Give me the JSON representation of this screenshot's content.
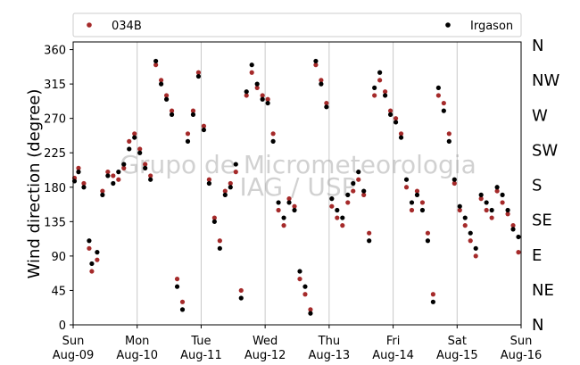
{
  "chart_data": {
    "type": "scatter",
    "title": "",
    "xlabel": "",
    "ylabel": "Wind direction (degree)",
    "ylim": [
      0,
      370
    ],
    "yticks": [
      0,
      45,
      90,
      135,
      180,
      225,
      270,
      315,
      360
    ],
    "xlim": [
      "2015-08-09",
      "2015-08-16"
    ],
    "xticks": [
      {
        "top": "Sun",
        "bottom": "Aug-09"
      },
      {
        "top": "Mon",
        "bottom": "Aug-10"
      },
      {
        "top": "Tue",
        "bottom": "Aug-11"
      },
      {
        "top": "Wed",
        "bottom": "Aug-12"
      },
      {
        "top": "Thu",
        "bottom": "Aug-13"
      },
      {
        "top": "Fri",
        "bottom": "Aug-14"
      },
      {
        "top": "Sat",
        "bottom": "Aug-15"
      },
      {
        "top": "Sun",
        "bottom": "Aug-16"
      }
    ],
    "direction_labels": [
      "N",
      "NE",
      "E",
      "SE",
      "S",
      "SW",
      "W",
      "NW",
      "N"
    ],
    "grid": "vertical",
    "legend_position": "top",
    "watermark": [
      "Grupo de Micrometeorologia",
      "IAG / USP"
    ],
    "series": [
      {
        "name": "034B",
        "color": "#a52a2a",
        "points": [
          [
            "2015-08-09T00:30",
            192
          ],
          [
            "2015-08-09T02:00",
            205
          ],
          [
            "2015-08-09T04:00",
            185
          ],
          [
            "2015-08-09T06:00",
            100
          ],
          [
            "2015-08-09T07:00",
            70
          ],
          [
            "2015-08-09T09:00",
            85
          ],
          [
            "2015-08-09T11:00",
            175
          ],
          [
            "2015-08-09T13:00",
            200
          ],
          [
            "2015-08-09T15:00",
            195
          ],
          [
            "2015-08-09T17:00",
            190
          ],
          [
            "2015-08-09T19:00",
            205
          ],
          [
            "2015-08-09T21:00",
            240
          ],
          [
            "2015-08-09T23:00",
            250
          ],
          [
            "2015-08-10T01:00",
            230
          ],
          [
            "2015-08-10T03:00",
            210
          ],
          [
            "2015-08-10T05:00",
            195
          ],
          [
            "2015-08-10T07:00",
            340
          ],
          [
            "2015-08-10T09:00",
            320
          ],
          [
            "2015-08-10T11:00",
            300
          ],
          [
            "2015-08-10T13:00",
            280
          ],
          [
            "2015-08-10T15:00",
            60
          ],
          [
            "2015-08-10T17:00",
            30
          ],
          [
            "2015-08-10T19:00",
            250
          ],
          [
            "2015-08-10T21:00",
            280
          ],
          [
            "2015-08-10T23:00",
            330
          ],
          [
            "2015-08-11T01:00",
            260
          ],
          [
            "2015-08-11T03:00",
            190
          ],
          [
            "2015-08-11T05:00",
            140
          ],
          [
            "2015-08-11T07:00",
            110
          ],
          [
            "2015-08-11T09:00",
            175
          ],
          [
            "2015-08-11T11:00",
            185
          ],
          [
            "2015-08-11T13:00",
            200
          ],
          [
            "2015-08-11T15:00",
            45
          ],
          [
            "2015-08-11T17:00",
            300
          ],
          [
            "2015-08-11T19:00",
            330
          ],
          [
            "2015-08-11T21:00",
            310
          ],
          [
            "2015-08-11T23:00",
            300
          ],
          [
            "2015-08-12T01:00",
            295
          ],
          [
            "2015-08-12T03:00",
            250
          ],
          [
            "2015-08-12T05:00",
            150
          ],
          [
            "2015-08-12T07:00",
            130
          ],
          [
            "2015-08-12T09:00",
            165
          ],
          [
            "2015-08-12T11:00",
            155
          ],
          [
            "2015-08-12T13:00",
            60
          ],
          [
            "2015-08-12T15:00",
            40
          ],
          [
            "2015-08-12T17:00",
            20
          ],
          [
            "2015-08-12T19:00",
            340
          ],
          [
            "2015-08-12T21:00",
            320
          ],
          [
            "2015-08-12T23:00",
            290
          ],
          [
            "2015-08-13T01:00",
            155
          ],
          [
            "2015-08-13T03:00",
            140
          ],
          [
            "2015-08-13T05:00",
            130
          ],
          [
            "2015-08-13T07:00",
            160
          ],
          [
            "2015-08-13T09:00",
            175
          ],
          [
            "2015-08-13T11:00",
            190
          ],
          [
            "2015-08-13T13:00",
            170
          ],
          [
            "2015-08-13T15:00",
            120
          ],
          [
            "2015-08-13T17:00",
            300
          ],
          [
            "2015-08-13T19:00",
            320
          ],
          [
            "2015-08-13T21:00",
            305
          ],
          [
            "2015-08-13T23:00",
            280
          ],
          [
            "2015-08-14T01:00",
            270
          ],
          [
            "2015-08-14T03:00",
            250
          ],
          [
            "2015-08-14T05:00",
            180
          ],
          [
            "2015-08-14T07:00",
            150
          ],
          [
            "2015-08-14T09:00",
            175
          ],
          [
            "2015-08-14T11:00",
            160
          ],
          [
            "2015-08-14T13:00",
            120
          ],
          [
            "2015-08-14T15:00",
            40
          ],
          [
            "2015-08-14T17:00",
            300
          ],
          [
            "2015-08-14T19:00",
            290
          ],
          [
            "2015-08-14T21:00",
            250
          ],
          [
            "2015-08-14T23:00",
            185
          ],
          [
            "2015-08-15T01:00",
            150
          ],
          [
            "2015-08-15T03:00",
            130
          ],
          [
            "2015-08-15T05:00",
            110
          ],
          [
            "2015-08-15T07:00",
            90
          ],
          [
            "2015-08-15T09:00",
            165
          ],
          [
            "2015-08-15T11:00",
            150
          ],
          [
            "2015-08-15T13:00",
            140
          ],
          [
            "2015-08-15T15:00",
            175
          ],
          [
            "2015-08-15T17:00",
            160
          ],
          [
            "2015-08-15T19:00",
            145
          ],
          [
            "2015-08-15T21:00",
            130
          ],
          [
            "2015-08-15T23:00",
            95
          ]
        ]
      },
      {
        "name": "Irgason",
        "color": "#000000",
        "points": [
          [
            "2015-08-09T00:30",
            188
          ],
          [
            "2015-08-09T02:00",
            200
          ],
          [
            "2015-08-09T04:00",
            180
          ],
          [
            "2015-08-09T06:00",
            110
          ],
          [
            "2015-08-09T07:00",
            80
          ],
          [
            "2015-08-09T09:00",
            95
          ],
          [
            "2015-08-09T11:00",
            170
          ],
          [
            "2015-08-09T13:00",
            195
          ],
          [
            "2015-08-09T15:00",
            185
          ],
          [
            "2015-08-09T17:00",
            200
          ],
          [
            "2015-08-09T19:00",
            210
          ],
          [
            "2015-08-09T21:00",
            230
          ],
          [
            "2015-08-09T23:00",
            245
          ],
          [
            "2015-08-10T01:00",
            225
          ],
          [
            "2015-08-10T03:00",
            205
          ],
          [
            "2015-08-10T05:00",
            190
          ],
          [
            "2015-08-10T07:00",
            345
          ],
          [
            "2015-08-10T09:00",
            315
          ],
          [
            "2015-08-10T11:00",
            295
          ],
          [
            "2015-08-10T13:00",
            275
          ],
          [
            "2015-08-10T15:00",
            50
          ],
          [
            "2015-08-10T17:00",
            20
          ],
          [
            "2015-08-10T19:00",
            240
          ],
          [
            "2015-08-10T21:00",
            275
          ],
          [
            "2015-08-10T23:00",
            325
          ],
          [
            "2015-08-11T01:00",
            255
          ],
          [
            "2015-08-11T03:00",
            185
          ],
          [
            "2015-08-11T05:00",
            135
          ],
          [
            "2015-08-11T07:00",
            100
          ],
          [
            "2015-08-11T09:00",
            170
          ],
          [
            "2015-08-11T11:00",
            180
          ],
          [
            "2015-08-11T13:00",
            210
          ],
          [
            "2015-08-11T15:00",
            35
          ],
          [
            "2015-08-11T17:00",
            305
          ],
          [
            "2015-08-11T19:00",
            340
          ],
          [
            "2015-08-11T21:00",
            315
          ],
          [
            "2015-08-11T23:00",
            295
          ],
          [
            "2015-08-12T01:00",
            290
          ],
          [
            "2015-08-12T03:00",
            240
          ],
          [
            "2015-08-12T05:00",
            160
          ],
          [
            "2015-08-12T07:00",
            140
          ],
          [
            "2015-08-12T09:00",
            160
          ],
          [
            "2015-08-12T11:00",
            150
          ],
          [
            "2015-08-12T13:00",
            70
          ],
          [
            "2015-08-12T15:00",
            50
          ],
          [
            "2015-08-12T17:00",
            15
          ],
          [
            "2015-08-12T19:00",
            345
          ],
          [
            "2015-08-12T21:00",
            315
          ],
          [
            "2015-08-12T23:00",
            285
          ],
          [
            "2015-08-13T01:00",
            165
          ],
          [
            "2015-08-13T03:00",
            150
          ],
          [
            "2015-08-13T05:00",
            140
          ],
          [
            "2015-08-13T07:00",
            170
          ],
          [
            "2015-08-13T09:00",
            185
          ],
          [
            "2015-08-13T11:00",
            200
          ],
          [
            "2015-08-13T13:00",
            175
          ],
          [
            "2015-08-13T15:00",
            110
          ],
          [
            "2015-08-13T17:00",
            310
          ],
          [
            "2015-08-13T19:00",
            330
          ],
          [
            "2015-08-13T21:00",
            300
          ],
          [
            "2015-08-13T23:00",
            275
          ],
          [
            "2015-08-14T01:00",
            265
          ],
          [
            "2015-08-14T03:00",
            245
          ],
          [
            "2015-08-14T05:00",
            190
          ],
          [
            "2015-08-14T07:00",
            160
          ],
          [
            "2015-08-14T09:00",
            170
          ],
          [
            "2015-08-14T11:00",
            150
          ],
          [
            "2015-08-14T13:00",
            110
          ],
          [
            "2015-08-14T15:00",
            30
          ],
          [
            "2015-08-14T17:00",
            310
          ],
          [
            "2015-08-14T19:00",
            280
          ],
          [
            "2015-08-14T21:00",
            240
          ],
          [
            "2015-08-14T23:00",
            190
          ],
          [
            "2015-08-15T01:00",
            155
          ],
          [
            "2015-08-15T03:00",
            140
          ],
          [
            "2015-08-15T05:00",
            120
          ],
          [
            "2015-08-15T07:00",
            100
          ],
          [
            "2015-08-15T09:00",
            170
          ],
          [
            "2015-08-15T11:00",
            160
          ],
          [
            "2015-08-15T13:00",
            150
          ],
          [
            "2015-08-15T15:00",
            180
          ],
          [
            "2015-08-15T17:00",
            170
          ],
          [
            "2015-08-15T19:00",
            150
          ],
          [
            "2015-08-15T21:00",
            125
          ],
          [
            "2015-08-15T23:00",
            115
          ]
        ]
      }
    ]
  }
}
